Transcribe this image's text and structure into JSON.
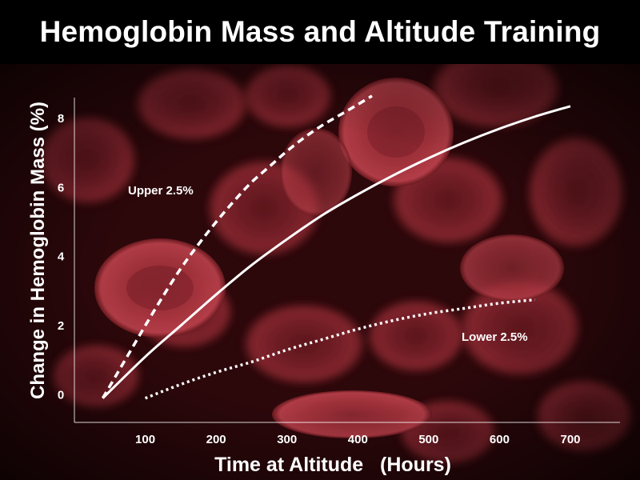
{
  "chart_data": {
    "type": "line",
    "title": "Hemoglobin Mass and Altitude Training",
    "xlabel": "Time at Altitude   (Hours)",
    "ylabel": "Change in Hemoglobin Mass (%)",
    "xlim": [
      0,
      770
    ],
    "ylim": [
      -0.8,
      8.6
    ],
    "x_ticks": [
      100,
      200,
      300,
      400,
      500,
      600,
      700
    ],
    "y_ticks": [
      0,
      2,
      4,
      6,
      8
    ],
    "grid": false,
    "legend": "none",
    "series": [
      {
        "name": "Upper 2.5%",
        "style": "dashed",
        "x": [
          40,
          60,
          80,
          100,
          125,
          150,
          175,
          200,
          225,
          250,
          275,
          300,
          325,
          350,
          375,
          400,
          420
        ],
        "y": [
          -0.1,
          0.6,
          1.3,
          2.0,
          2.85,
          3.65,
          4.35,
          5.0,
          5.6,
          6.15,
          6.6,
          7.05,
          7.45,
          7.8,
          8.1,
          8.4,
          8.65
        ]
      },
      {
        "name": "",
        "style": "solid",
        "x": [
          40,
          100,
          150,
          200,
          250,
          300,
          350,
          400,
          450,
          500,
          550,
          600,
          650,
          700
        ],
        "y": [
          -0.1,
          1.1,
          2.0,
          2.9,
          3.75,
          4.5,
          5.2,
          5.8,
          6.35,
          6.85,
          7.3,
          7.7,
          8.05,
          8.35
        ]
      },
      {
        "name": "Lower 2.5%",
        "style": "dotted",
        "x": [
          100,
          150,
          200,
          250,
          300,
          350,
          400,
          450,
          500,
          550,
          600,
          650
        ],
        "y": [
          -0.1,
          0.3,
          0.65,
          0.95,
          1.3,
          1.6,
          1.9,
          2.15,
          2.35,
          2.5,
          2.65,
          2.75
        ]
      }
    ],
    "annotations": [
      "Upper 2.5%",
      "Lower 2.5%"
    ]
  },
  "colors": {
    "background": "#000000",
    "plot_background": "#3a0d10",
    "foreground": "#ffffff"
  }
}
